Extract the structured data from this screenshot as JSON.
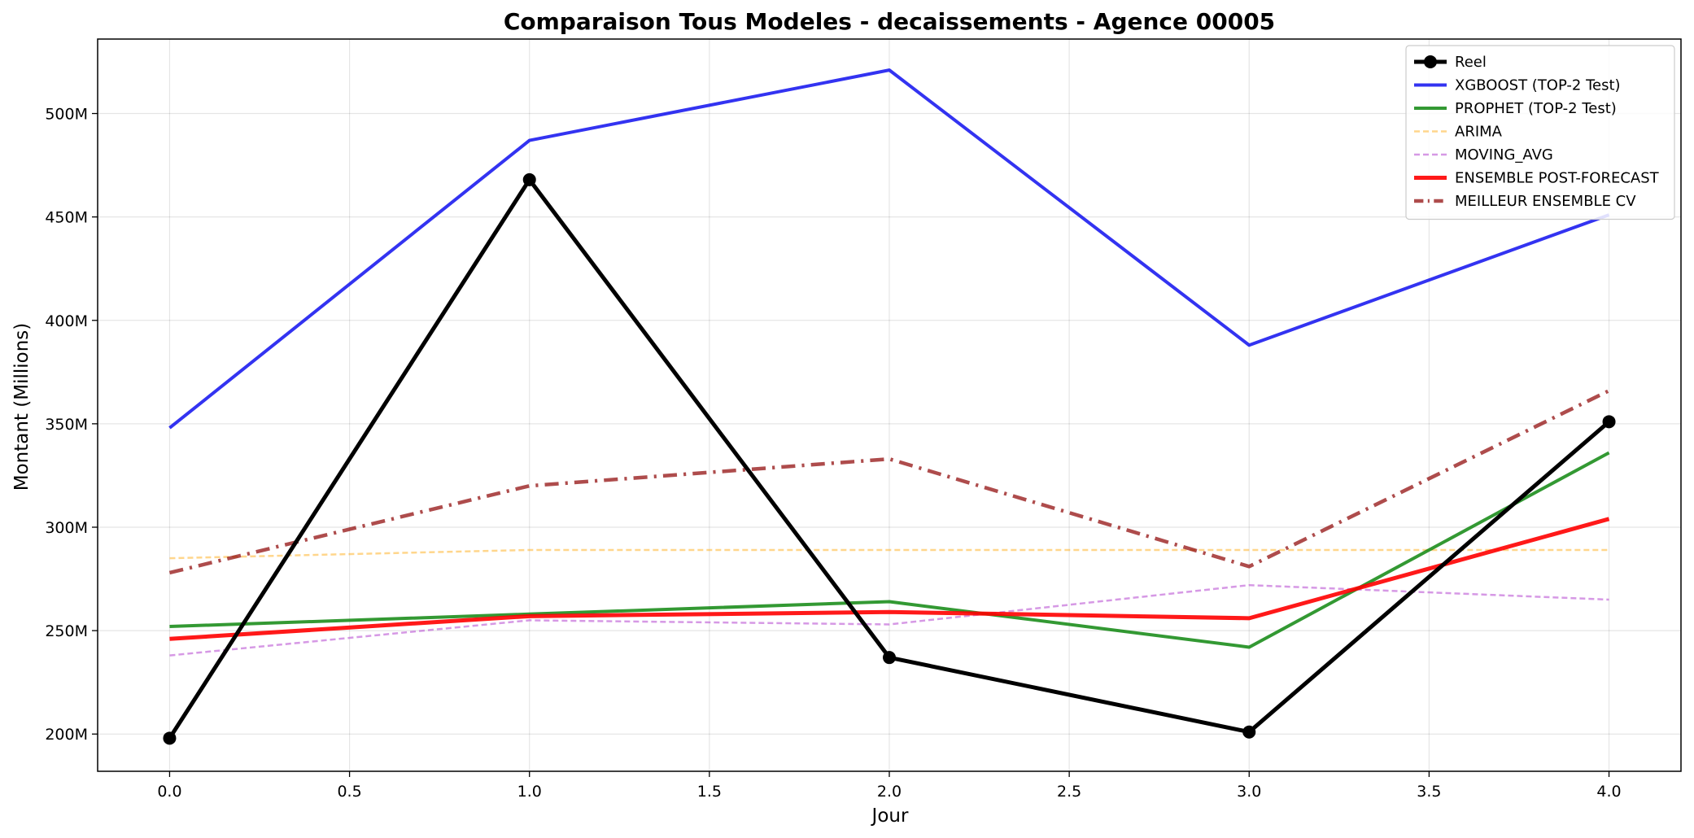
{
  "chart_data": {
    "type": "line",
    "title": "Comparaison Tous Modeles - decaissements - Agence 00005",
    "xlabel": "Jour",
    "ylabel": "Montant (Millions)",
    "x": [
      0,
      1,
      2,
      3,
      4
    ],
    "xlim": [
      -0.2,
      4.2
    ],
    "ylim": [
      182,
      536
    ],
    "xticks": [
      0.0,
      0.5,
      1.0,
      1.5,
      2.0,
      2.5,
      3.0,
      3.5,
      4.0
    ],
    "xtick_labels": [
      "0.0",
      "0.5",
      "1.0",
      "1.5",
      "2.0",
      "2.5",
      "3.0",
      "3.5",
      "4.0"
    ],
    "yticks": [
      200,
      250,
      300,
      350,
      400,
      450,
      500
    ],
    "ytick_labels": [
      "200M",
      "250M",
      "300M",
      "350M",
      "400M",
      "450M",
      "500M"
    ],
    "grid": true,
    "legend_position": "top-right",
    "series": [
      {
        "name": "Reel",
        "values": [
          198,
          468,
          237,
          201,
          351
        ],
        "color": "#000000",
        "style": "solid",
        "width": 5,
        "marker": "circle",
        "opacity": 1
      },
      {
        "name": "XGBOOST (TOP-2 Test)",
        "values": [
          348,
          487,
          521,
          388,
          451
        ],
        "color": "#0000ee",
        "style": "solid",
        "width": 4,
        "marker": "none",
        "opacity": 0.8
      },
      {
        "name": "PROPHET (TOP-2 Test)",
        "values": [
          252,
          258,
          264,
          242,
          336
        ],
        "color": "#007f00",
        "style": "solid",
        "width": 4,
        "marker": "none",
        "opacity": 0.8
      },
      {
        "name": "ARIMA",
        "values": [
          285,
          289,
          289,
          289,
          289
        ],
        "color": "#ffa500",
        "style": "dashed",
        "width": 2.5,
        "marker": "none",
        "opacity": 0.45
      },
      {
        "name": "MOVING_AVG",
        "values": [
          238,
          255,
          253,
          272,
          265
        ],
        "color": "#ba55d3",
        "style": "dashed",
        "width": 2.5,
        "marker": "none",
        "opacity": 0.6
      },
      {
        "name": "ENSEMBLE POST-FORECAST",
        "values": [
          246,
          257,
          259,
          256,
          304
        ],
        "color": "#ff0000",
        "style": "solid",
        "width": 5,
        "marker": "none",
        "opacity": 0.9
      },
      {
        "name": "MEILLEUR ENSEMBLE CV",
        "values": [
          278,
          320,
          333,
          281,
          366
        ],
        "color": "#8b0000",
        "style": "dashdot",
        "width": 4.5,
        "marker": "none",
        "opacity": 0.7
      }
    ]
  }
}
